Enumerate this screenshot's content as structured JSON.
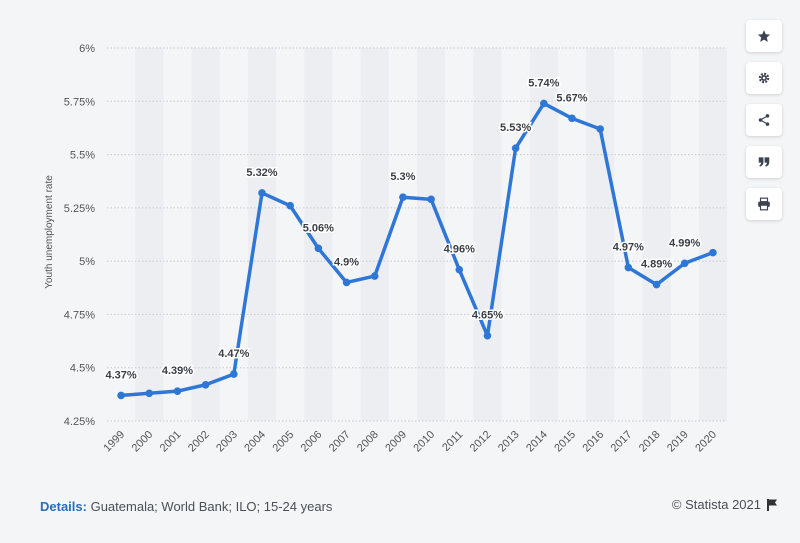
{
  "chart_data": {
    "type": "line",
    "ylabel": "Youth unemployment rate",
    "xlabel": "",
    "categories": [
      "1999",
      "2000",
      "2001",
      "2002",
      "2003",
      "2004",
      "2005",
      "2006",
      "2007",
      "2008",
      "2009",
      "2010",
      "2011",
      "2012",
      "2013",
      "2014",
      "2015",
      "2016",
      "2017",
      "2018",
      "2019",
      "2020"
    ],
    "values": [
      4.37,
      4.38,
      4.39,
      4.42,
      4.47,
      5.32,
      5.26,
      5.06,
      4.9,
      4.93,
      5.3,
      5.29,
      4.96,
      4.65,
      5.53,
      5.74,
      5.67,
      5.62,
      4.97,
      4.89,
      4.99,
      5.04
    ],
    "data_labels": [
      {
        "index": 0,
        "text": "4.37%"
      },
      {
        "index": 2,
        "text": "4.39%"
      },
      {
        "index": 4,
        "text": "4.47%"
      },
      {
        "index": 5,
        "text": "5.32%"
      },
      {
        "index": 7,
        "text": "5.06%"
      },
      {
        "index": 8,
        "text": "4.9%"
      },
      {
        "index": 10,
        "text": "5.3%"
      },
      {
        "index": 12,
        "text": "4.96%"
      },
      {
        "index": 13,
        "text": "4.65%"
      },
      {
        "index": 14,
        "text": "5.53%"
      },
      {
        "index": 15,
        "text": "5.74%"
      },
      {
        "index": 16,
        "text": "5.67%"
      },
      {
        "index": 18,
        "text": "4.97%"
      },
      {
        "index": 19,
        "text": "4.89%"
      },
      {
        "index": 20,
        "text": "4.99%"
      }
    ],
    "ylim": [
      4.25,
      6
    ],
    "yticks": [
      4.25,
      4.5,
      4.75,
      5,
      5.25,
      5.5,
      5.75,
      6
    ],
    "ytick_labels": [
      "4.25%",
      "4.5%",
      "4.75%",
      "5%",
      "5.25%",
      "5.5%",
      "5.75%",
      "6%"
    ],
    "series_color": "#2f77d6",
    "grid": true
  },
  "footer": {
    "details_label": "Details:",
    "details_text": "Guatemala; World Bank; ILO; 15-24 years",
    "credit": "© Statista 2021"
  },
  "toolbar": {
    "icons": [
      "star-icon",
      "gear-icon",
      "share-icon",
      "quote-icon",
      "print-icon"
    ]
  },
  "colors": {
    "background": "#f4f5f7",
    "band": "#eceef2",
    "text": "#4a4f57",
    "link": "#2a6ebb"
  }
}
